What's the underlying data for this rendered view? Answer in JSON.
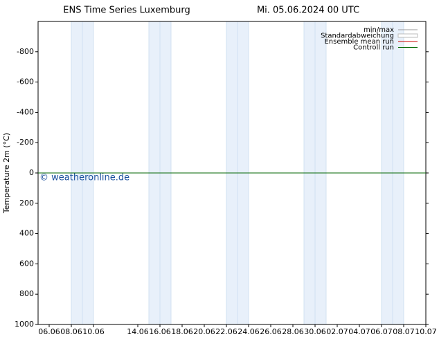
{
  "chart_data": {
    "type": "line",
    "title": "ENS Time Series Luxemburg",
    "subtitle": "Mi. 05.06.2024 00 UTC",
    "y_label": "Temperature 2m (°C)",
    "watermark": "© weatheronline.de",
    "x": [
      0,
      35
    ],
    "xlim": [
      0,
      35
    ],
    "xticks": [
      {
        "value": 1,
        "label": "06.06"
      },
      {
        "value": 3,
        "label": "08.06"
      },
      {
        "value": 5,
        "label": "10.06"
      },
      {
        "value": 9,
        "label": "14.06"
      },
      {
        "value": 11,
        "label": "16.06"
      },
      {
        "value": 13,
        "label": "18.06"
      },
      {
        "value": 15,
        "label": "20.06"
      },
      {
        "value": 17,
        "label": "22.06"
      },
      {
        "value": 19,
        "label": "24.06"
      },
      {
        "value": 21,
        "label": "26.06"
      },
      {
        "value": 23,
        "label": "28.06"
      },
      {
        "value": 25,
        "label": "30.06"
      },
      {
        "value": 27,
        "label": "02.07"
      },
      {
        "value": 29,
        "label": "04.07"
      },
      {
        "value": 31,
        "label": "06.07"
      },
      {
        "value": 33,
        "label": "08.07"
      },
      {
        "value": 35,
        "label": "10.07"
      }
    ],
    "ylim": [
      1000,
      -1000
    ],
    "yticks": [
      -800,
      -600,
      -400,
      -200,
      0,
      200,
      400,
      600,
      800,
      1000
    ],
    "shaded_spans": [
      [
        3,
        5
      ],
      [
        10,
        12
      ],
      [
        17,
        19
      ],
      [
        24,
        26
      ],
      [
        31,
        33
      ]
    ],
    "series": [
      {
        "name": "min/max",
        "color": "#999999",
        "values": [
          0,
          0
        ]
      },
      {
        "name": "Standardabweichung",
        "color": "#bbbbbb",
        "values": [
          0,
          0
        ]
      },
      {
        "name": "Ensemble mean run",
        "color": "#cc0000",
        "values": [
          0,
          0
        ]
      },
      {
        "name": "Controll run",
        "color": "#006600",
        "values": [
          0,
          0
        ]
      }
    ]
  }
}
